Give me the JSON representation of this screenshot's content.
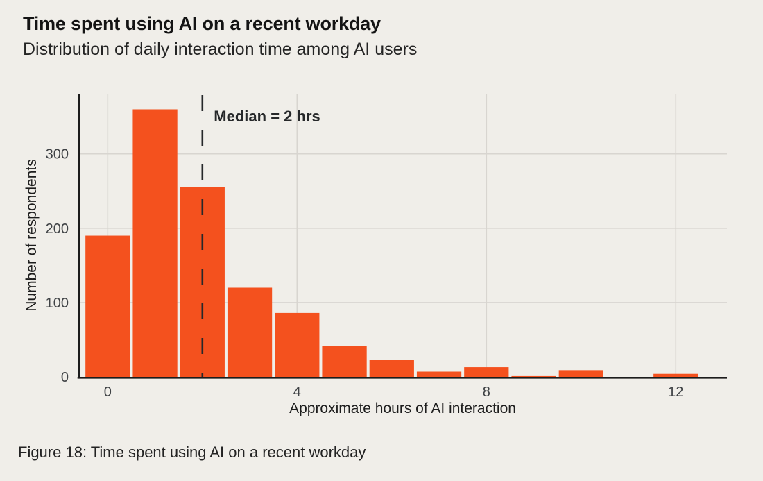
{
  "page": {
    "title": "Time spent using AI on a recent workday",
    "subtitle": "Distribution of daily interaction time among AI users",
    "caption": "Figure 18: Time spent using AI on a recent workday"
  },
  "colors": {
    "background": "#f0eee9",
    "bar": "#f4511e",
    "axis": "#1c1c1c",
    "grid": "#d8d5d0",
    "title_text": "#141414",
    "tick_text": "#3f4245",
    "median_line": "#26282a"
  },
  "chart_data": {
    "type": "bar",
    "title": "Time spent using AI on a recent workday",
    "subtitle": "Distribution of daily interaction time among AI users",
    "xlabel": "Approximate hours of AI interaction",
    "ylabel": "Number of respondents",
    "x": [
      0,
      1,
      2,
      3,
      4,
      5,
      6,
      7,
      8,
      9,
      10,
      11,
      12
    ],
    "values": [
      190,
      360,
      255,
      120,
      86,
      42,
      23,
      7,
      13,
      1,
      9,
      0,
      4
    ],
    "bin_width": 1,
    "xticks": [
      0,
      4,
      8,
      12
    ],
    "yticks": [
      0,
      100,
      200,
      300
    ],
    "xlim": [
      -0.62,
      13.08
    ],
    "ylim": [
      0,
      381
    ],
    "grid": true,
    "legend": "none",
    "annotation": {
      "text": "Median = 2 hrs",
      "x": 2
    }
  }
}
